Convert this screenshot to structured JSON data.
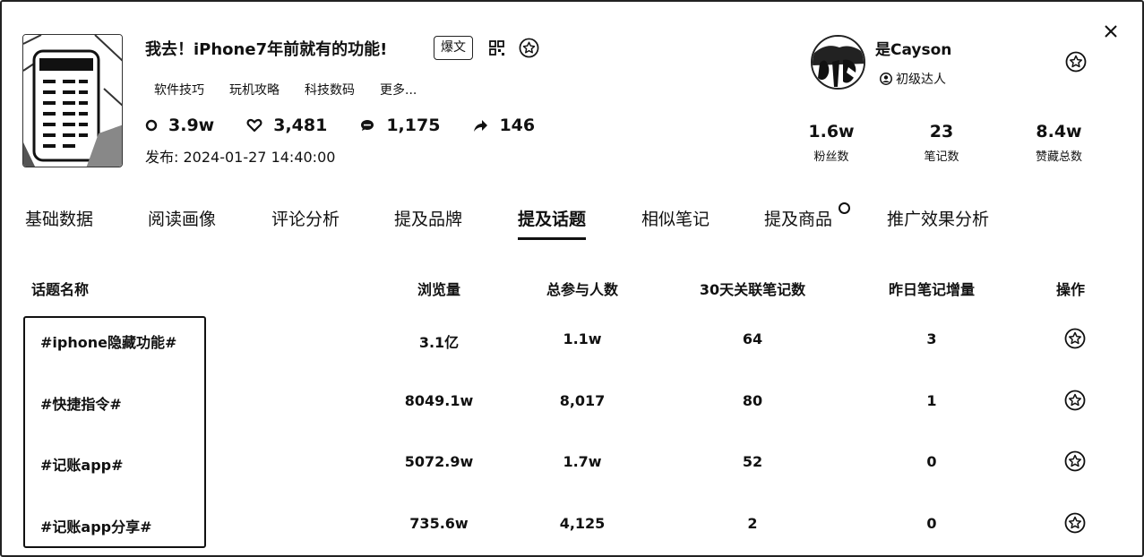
{
  "note": {
    "title": "我去！iPhone7年前就有的功能!",
    "badge": "爆文",
    "tags": [
      "软件技巧",
      "玩机攻略",
      "科技数码",
      "更多..."
    ],
    "stats": {
      "views": "3.9w",
      "likes": "3,481",
      "comments": "1,175",
      "shares": "146"
    },
    "publish_label": "发布:",
    "publish_time": "2024-01-27 14:40:00"
  },
  "author": {
    "name": "是Cayson",
    "level": "初级达人",
    "metrics": [
      {
        "value": "1.6w",
        "label": "粉丝数"
      },
      {
        "value": "23",
        "label": "笔记数"
      },
      {
        "value": "8.4w",
        "label": "赞藏总数"
      }
    ]
  },
  "tabs": [
    "基础数据",
    "阅读画像",
    "评论分析",
    "提及品牌",
    "提及话题",
    "相似笔记",
    "提及商品",
    "推广效果分析"
  ],
  "active_tab": "提及话题",
  "table": {
    "headers": [
      "话题名称",
      "浏览量",
      "总参与人数",
      "30天关联笔记数",
      "昨日笔记增量",
      "操作"
    ],
    "rows": [
      {
        "topic": "#iphone隐藏功能#",
        "views": "3.1亿",
        "participants": "1.1w",
        "notes_30d": "64",
        "yesterday": "3"
      },
      {
        "topic": "#快捷指令#",
        "views": "8049.1w",
        "participants": "8,017",
        "notes_30d": "80",
        "yesterday": "1"
      },
      {
        "topic": "#记账app#",
        "views": "5072.9w",
        "participants": "1.7w",
        "notes_30d": "52",
        "yesterday": "0"
      },
      {
        "topic": "#记账app分享#",
        "views": "735.6w",
        "participants": "4,125",
        "notes_30d": "2",
        "yesterday": "0"
      }
    ]
  }
}
